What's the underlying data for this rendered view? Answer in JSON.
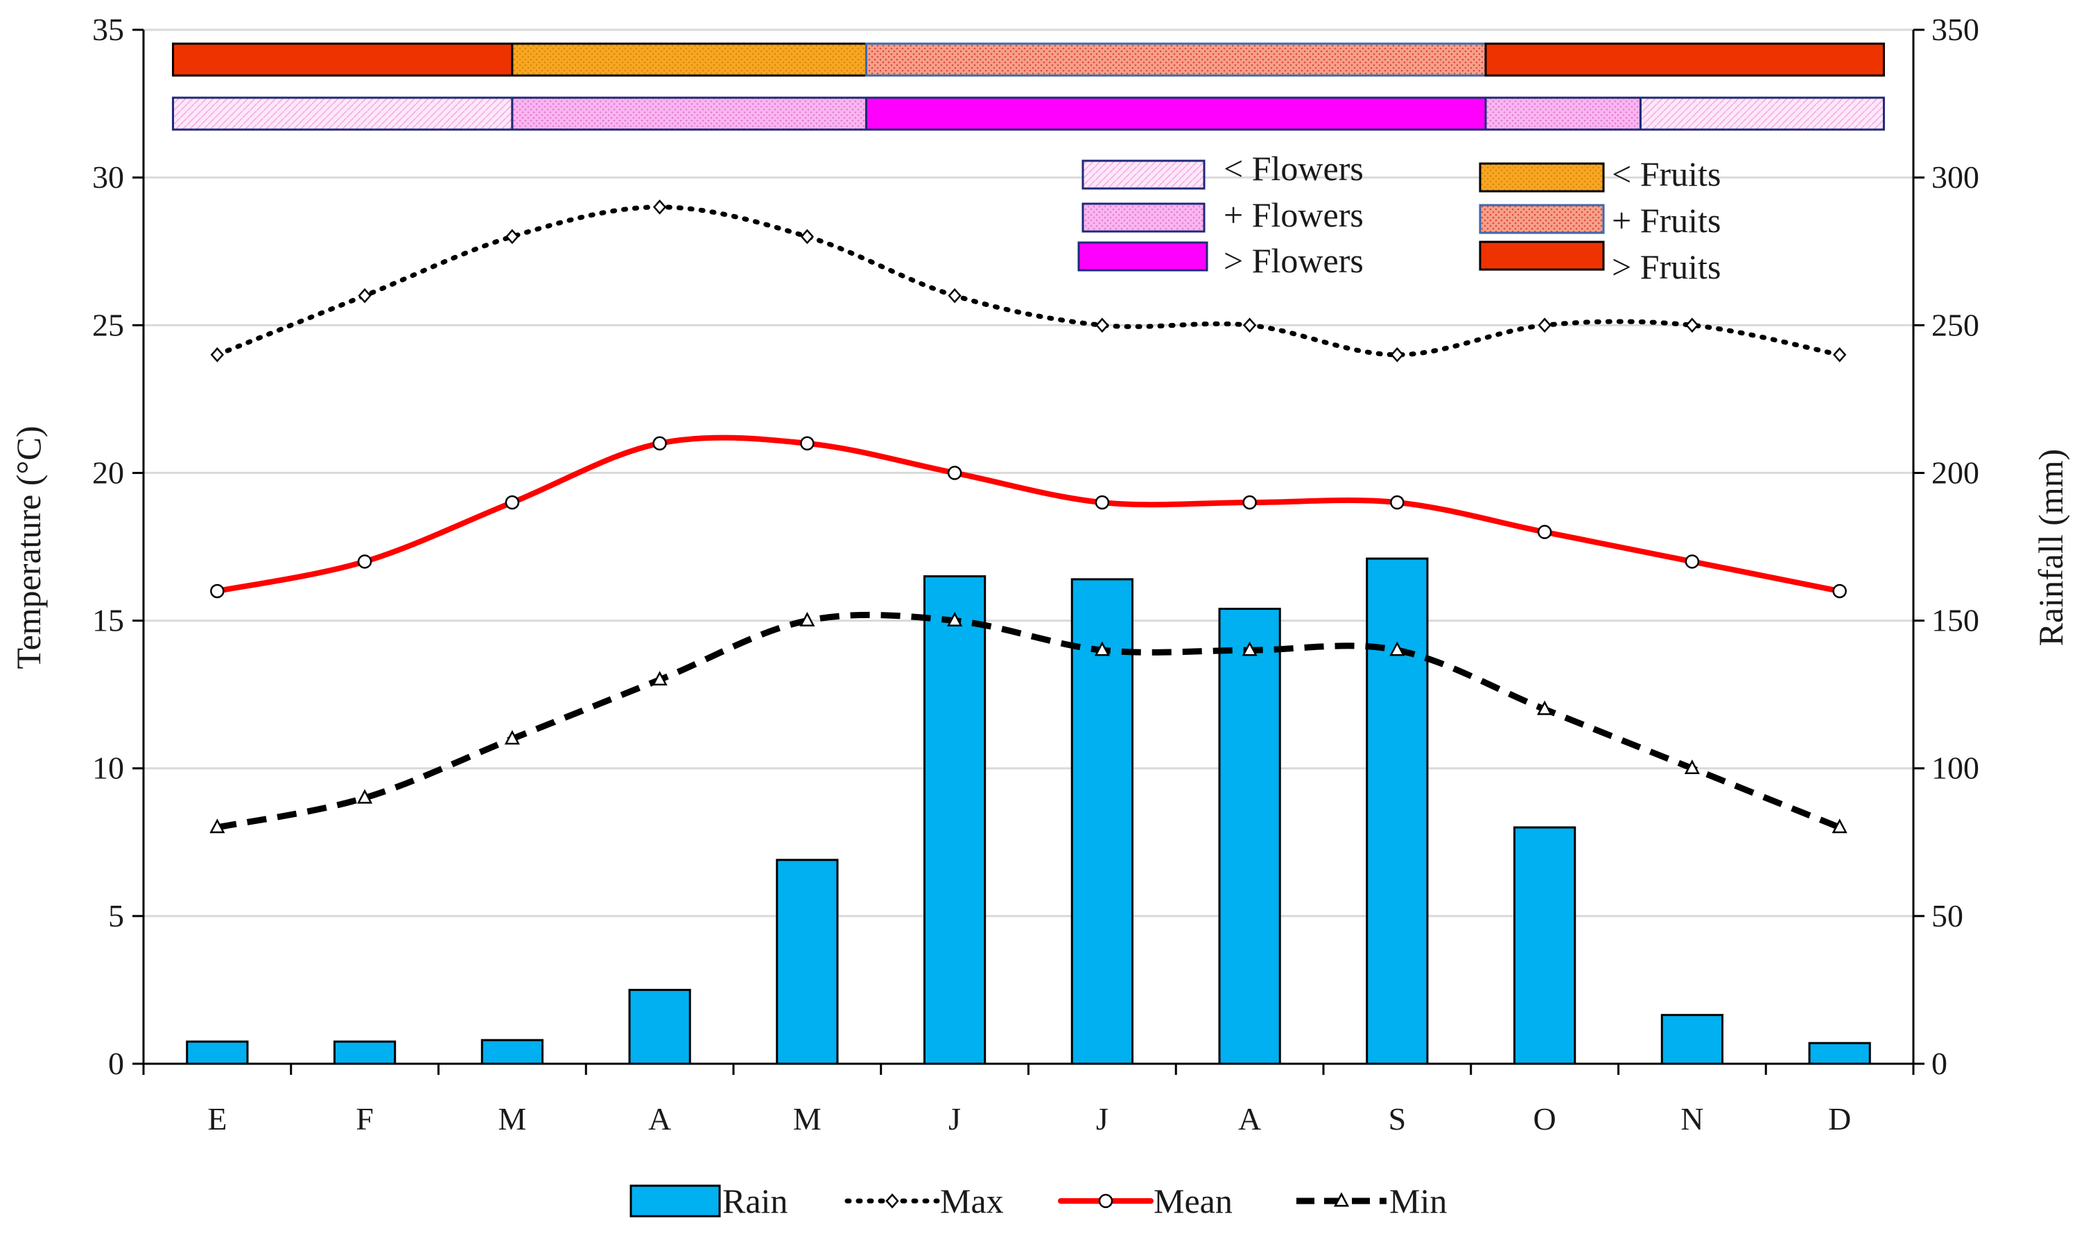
{
  "chart_data": {
    "type": "bar+line",
    "title": "",
    "categories": [
      "E",
      "F",
      "M",
      "A",
      "M",
      "J",
      "J",
      "A",
      "S",
      "O",
      "N",
      "D"
    ],
    "y_left": {
      "label": "Temperature (°C)",
      "range": [
        0,
        35
      ],
      "ticks": [
        "0",
        "5",
        "10",
        "15",
        "20",
        "25",
        "30",
        "35"
      ]
    },
    "y_right": {
      "label": "Rainfall (mm)",
      "range": [
        0,
        350
      ],
      "ticks": [
        "0",
        "50",
        "100",
        "150",
        "200",
        "250",
        "300",
        "350"
      ]
    },
    "grid": "horizontal",
    "series": [
      {
        "name": "Rain",
        "type": "bar",
        "axis": "right",
        "color": "#00b0f0",
        "values": [
          7.5,
          7.5,
          8,
          25,
          69,
          165,
          164,
          154,
          171,
          80,
          16.5,
          7
        ]
      },
      {
        "name": "Max",
        "type": "line",
        "style": "dotted",
        "marker": "diamond",
        "axis": "left",
        "color": "#000000",
        "values": [
          24,
          26,
          28,
          29,
          28,
          26,
          25,
          25,
          24,
          25,
          25,
          24
        ]
      },
      {
        "name": "Mean",
        "type": "line",
        "style": "solid",
        "marker": "circle",
        "axis": "left",
        "color": "#ff0000",
        "values": [
          16,
          17,
          19,
          21,
          21,
          20,
          19,
          19,
          19,
          18,
          17,
          16
        ]
      },
      {
        "name": "Min",
        "type": "line",
        "style": "dashed",
        "marker": "triangle",
        "axis": "left",
        "color": "#000000",
        "values": [
          8,
          9,
          11,
          13,
          15,
          15,
          14,
          14,
          14,
          12,
          10,
          8
        ]
      }
    ],
    "phenology": {
      "fruits_row": [
        {
          "label": "> Fruits",
          "from_month": 0,
          "to_month": 2.0
        },
        {
          "label": "< Fruits",
          "from_month": 2.0,
          "to_month": 4.4
        },
        {
          "label": "+ Fruits",
          "from_month": 4.4,
          "to_month": 8.6
        },
        {
          "label": "> Fruits",
          "from_month": 8.6,
          "to_month": 11.3
        }
      ],
      "flowers_row": [
        {
          "label": "< Flowers",
          "from_month": 0,
          "to_month": 2.0
        },
        {
          "label": "+ Flowers",
          "from_month": 2.0,
          "to_month": 4.4
        },
        {
          "label": "> Flowers",
          "from_month": 4.4,
          "to_month": 8.6
        },
        {
          "label": "+ Flowers",
          "from_month": 8.6,
          "to_month": 9.65
        },
        {
          "label": "< Flowers",
          "from_month": 9.65,
          "to_month": 11.3
        }
      ]
    },
    "phenology_legend": [
      {
        "key": "lt_flowers",
        "label": "< Flowers"
      },
      {
        "key": "plus_flowers",
        "label": "+ Flowers"
      },
      {
        "key": "gt_flowers",
        "label": "> Flowers"
      },
      {
        "key": "lt_fruits",
        "label": "< Fruits"
      },
      {
        "key": "plus_fruits",
        "label": "+ Fruits"
      },
      {
        "key": "gt_fruits",
        "label": "> Fruits"
      }
    ],
    "legend": {
      "position": "bottom",
      "entries": [
        "Rain",
        "Max",
        "Mean",
        "Min"
      ]
    }
  }
}
